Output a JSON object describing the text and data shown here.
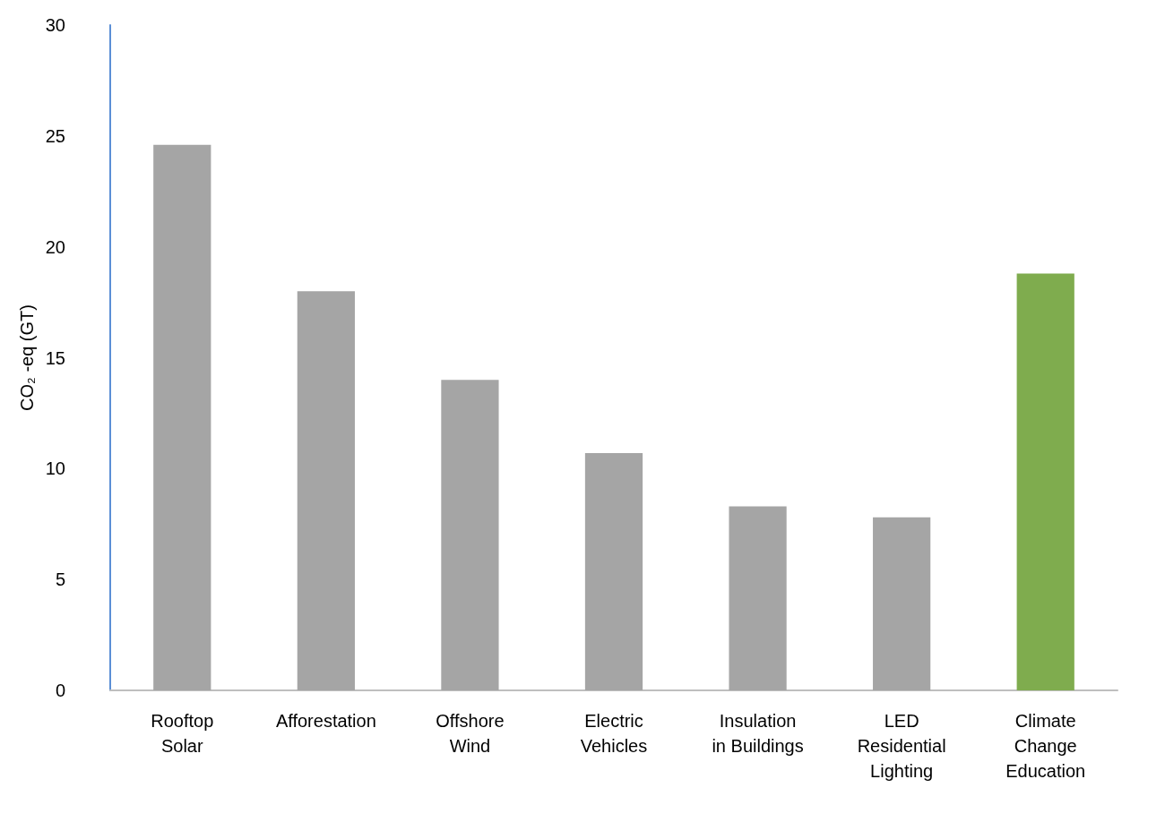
{
  "chart_data": {
    "type": "bar",
    "ylabel": "CO₂ -eq (GT)",
    "categories": [
      "Rooftop Solar",
      "Afforestation",
      "Offshore Wind",
      "Electric Vehicles",
      "Insulation in Buildings",
      "LED Residential Lighting",
      "Climate Change Education"
    ],
    "values": [
      24.6,
      18.0,
      14.0,
      10.7,
      8.3,
      7.8,
      18.8
    ],
    "colors": [
      "#a5a5a5",
      "#a5a5a5",
      "#a5a5a5",
      "#a5a5a5",
      "#a5a5a5",
      "#a5a5a5",
      "#7fac4e"
    ],
    "ylim": [
      0,
      30
    ],
    "yticks": [
      0,
      5,
      10,
      15,
      20,
      25,
      30
    ],
    "grid": false
  }
}
